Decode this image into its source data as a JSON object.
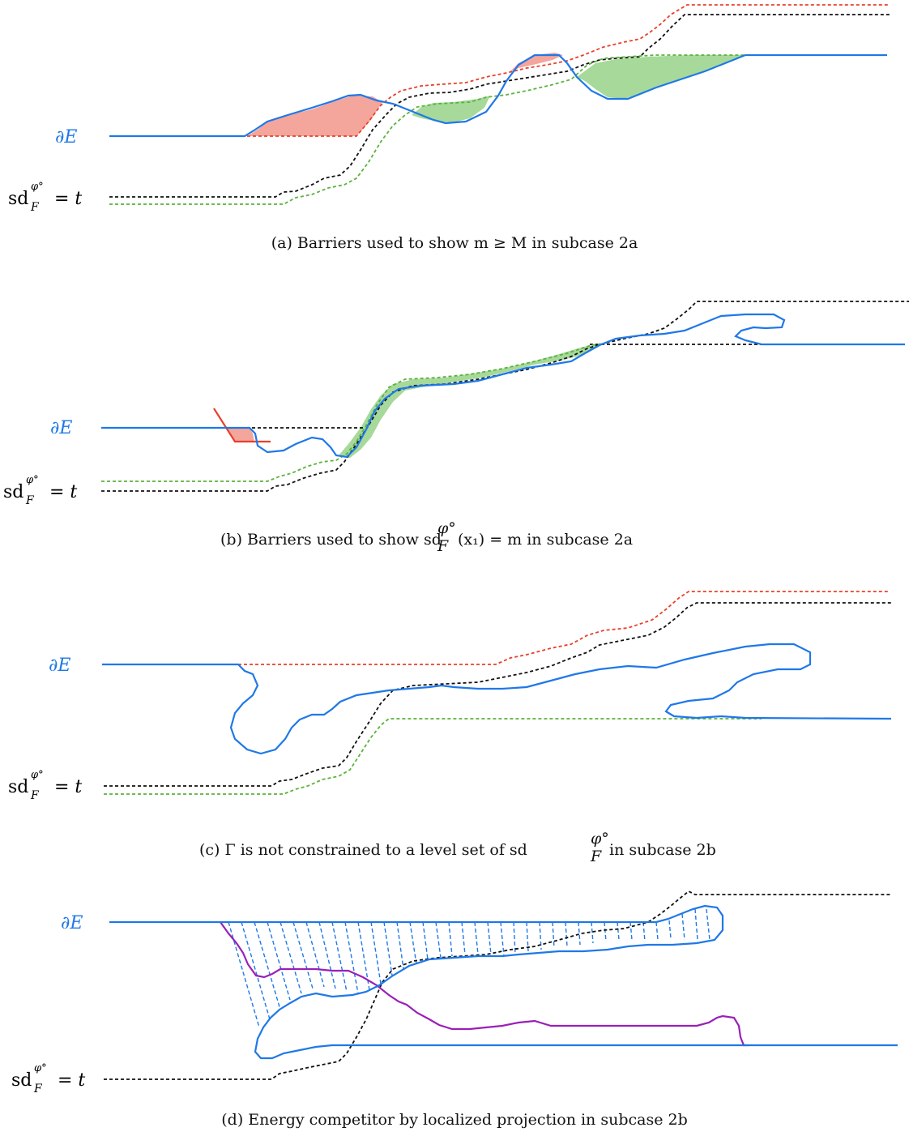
{
  "labels": {
    "boundary": "∂E",
    "level_base": "sd",
    "level_sub": "F",
    "level_sup": "φ°",
    "level_rest": "= t"
  },
  "captions": {
    "a": "(a) Barriers used to show m ≥ M in subcase 2a",
    "b": "(b) Barriers used to show sd",
    "b_sub": "F",
    "b_sup": "φ°",
    "b_rest": "(x₁) = m in subcase 2a",
    "c": "(c) Γ is not constrained to a level set of sd",
    "c_sub": "F",
    "c_sup": "φ°",
    "c_rest": " in subcase 2b",
    "d": "(d) Energy competitor by localized projection in subcase 2b"
  },
  "colors": {
    "boundary": "#1f78e8",
    "upper_barrier": "#e8402a",
    "lower_barrier": "#5ab33a",
    "level_set": "#111111",
    "competitor": "#9a1fb8",
    "red_region": "#f4a59c",
    "green_region": "#a6d99a"
  }
}
